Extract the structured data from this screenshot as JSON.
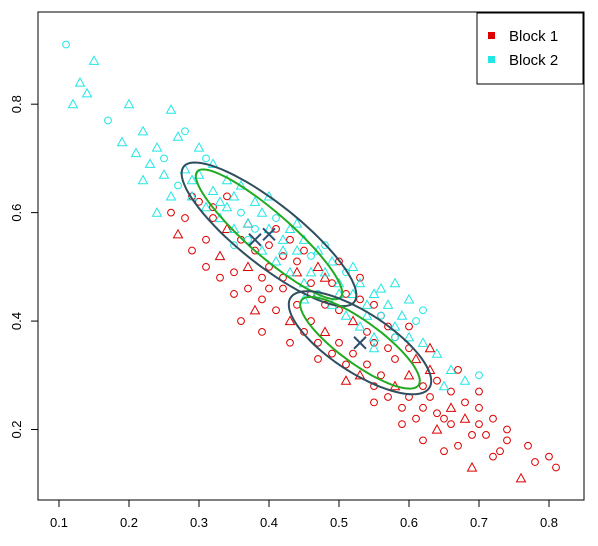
{
  "chart_data": {
    "type": "scatter",
    "title": "",
    "xlabel": "",
    "ylabel": "",
    "xlim": [
      0.07,
      0.85
    ],
    "ylim": [
      0.07,
      0.97
    ],
    "x_ticks": [
      "0.1",
      "0.2",
      "0.3",
      "0.4",
      "0.5",
      "0.6",
      "0.7",
      "0.8"
    ],
    "y_ticks": [
      "0.2",
      "0.4",
      "0.6",
      "0.8"
    ],
    "grid": false,
    "legend": {
      "position": "top-right",
      "entries": [
        "Block 1",
        "Block 2"
      ]
    },
    "series": [
      {
        "name": "Block 1",
        "color": "#dd0000",
        "markers": [
          "circle",
          "triangle"
        ],
        "points": [
          [
            0.52,
            0.4
          ],
          [
            0.48,
            0.43
          ],
          [
            0.55,
            0.36
          ],
          [
            0.58,
            0.33
          ],
          [
            0.62,
            0.28
          ],
          [
            0.66,
            0.24
          ],
          [
            0.7,
            0.21
          ],
          [
            0.74,
            0.18
          ],
          [
            0.78,
            0.14
          ],
          [
            0.81,
            0.13
          ],
          [
            0.76,
            0.11
          ],
          [
            0.72,
            0.15
          ],
          [
            0.69,
            0.19
          ],
          [
            0.65,
            0.22
          ],
          [
            0.63,
            0.26
          ],
          [
            0.6,
            0.3
          ],
          [
            0.57,
            0.35
          ],
          [
            0.54,
            0.38
          ],
          [
            0.5,
            0.42
          ],
          [
            0.46,
            0.45
          ],
          [
            0.44,
            0.49
          ],
          [
            0.42,
            0.52
          ],
          [
            0.4,
            0.5
          ],
          [
            0.38,
            0.53
          ],
          [
            0.36,
            0.55
          ],
          [
            0.34,
            0.57
          ],
          [
            0.32,
            0.59
          ],
          [
            0.3,
            0.62
          ],
          [
            0.28,
            0.59
          ],
          [
            0.31,
            0.55
          ],
          [
            0.33,
            0.52
          ],
          [
            0.35,
            0.49
          ],
          [
            0.37,
            0.46
          ],
          [
            0.39,
            0.44
          ],
          [
            0.41,
            0.42
          ],
          [
            0.43,
            0.4
          ],
          [
            0.45,
            0.38
          ],
          [
            0.47,
            0.36
          ],
          [
            0.49,
            0.34
          ],
          [
            0.51,
            0.32
          ],
          [
            0.53,
            0.3
          ],
          [
            0.55,
            0.28
          ],
          [
            0.57,
            0.26
          ],
          [
            0.59,
            0.24
          ],
          [
            0.61,
            0.22
          ],
          [
            0.64,
            0.2
          ],
          [
            0.67,
            0.17
          ],
          [
            0.71,
            0.19
          ],
          [
            0.68,
            0.25
          ],
          [
            0.64,
            0.29
          ],
          [
            0.61,
            0.33
          ],
          [
            0.58,
            0.37
          ],
          [
            0.56,
            0.41
          ],
          [
            0.53,
            0.44
          ],
          [
            0.49,
            0.47
          ],
          [
            0.47,
            0.5
          ],
          [
            0.45,
            0.53
          ],
          [
            0.43,
            0.55
          ],
          [
            0.41,
            0.57
          ],
          [
            0.39,
            0.48
          ],
          [
            0.37,
            0.5
          ],
          [
            0.35,
            0.45
          ],
          [
            0.33,
            0.48
          ],
          [
            0.31,
            0.5
          ],
          [
            0.29,
            0.53
          ],
          [
            0.27,
            0.56
          ],
          [
            0.26,
            0.6
          ],
          [
            0.29,
            0.63
          ],
          [
            0.32,
            0.61
          ],
          [
            0.34,
            0.63
          ],
          [
            0.37,
            0.58
          ],
          [
            0.4,
            0.54
          ],
          [
            0.42,
            0.46
          ],
          [
            0.44,
            0.43
          ],
          [
            0.46,
            0.4
          ],
          [
            0.48,
            0.38
          ],
          [
            0.5,
            0.36
          ],
          [
            0.52,
            0.34
          ],
          [
            0.54,
            0.32
          ],
          [
            0.56,
            0.3
          ],
          [
            0.58,
            0.28
          ],
          [
            0.6,
            0.26
          ],
          [
            0.62,
            0.24
          ],
          [
            0.64,
            0.23
          ],
          [
            0.66,
            0.21
          ],
          [
            0.68,
            0.22
          ],
          [
            0.7,
            0.24
          ],
          [
            0.72,
            0.22
          ],
          [
            0.74,
            0.2
          ],
          [
            0.66,
            0.27
          ],
          [
            0.63,
            0.31
          ],
          [
            0.6,
            0.35
          ],
          [
            0.57,
            0.39
          ],
          [
            0.55,
            0.43
          ],
          [
            0.51,
            0.45
          ],
          [
            0.48,
            0.48
          ],
          [
            0.46,
            0.47
          ],
          [
            0.44,
            0.51
          ],
          [
            0.42,
            0.48
          ],
          [
            0.4,
            0.46
          ],
          [
            0.38,
            0.42
          ],
          [
            0.36,
            0.4
          ],
          [
            0.39,
            0.38
          ],
          [
            0.43,
            0.36
          ],
          [
            0.47,
            0.33
          ],
          [
            0.51,
            0.29
          ],
          [
            0.55,
            0.25
          ],
          [
            0.59,
            0.21
          ],
          [
            0.62,
            0.18
          ],
          [
            0.65,
            0.16
          ],
          [
            0.69,
            0.13
          ],
          [
            0.73,
            0.16
          ],
          [
            0.77,
            0.17
          ],
          [
            0.8,
            0.15
          ],
          [
            0.6,
            0.39
          ],
          [
            0.63,
            0.35
          ],
          [
            0.67,
            0.31
          ],
          [
            0.7,
            0.27
          ],
          [
            0.53,
            0.48
          ],
          [
            0.5,
            0.51
          ]
        ]
      },
      {
        "name": "Block 2",
        "color": "#22e6e6",
        "markers": [
          "triangle",
          "circle"
        ],
        "points": [
          [
            0.11,
            0.91
          ],
          [
            0.15,
            0.88
          ],
          [
            0.13,
            0.84
          ],
          [
            0.12,
            0.8
          ],
          [
            0.14,
            0.82
          ],
          [
            0.17,
            0.77
          ],
          [
            0.2,
            0.8
          ],
          [
            0.22,
            0.75
          ],
          [
            0.24,
            0.72
          ],
          [
            0.26,
            0.79
          ],
          [
            0.25,
            0.7
          ],
          [
            0.27,
            0.74
          ],
          [
            0.28,
            0.68
          ],
          [
            0.3,
            0.72
          ],
          [
            0.29,
            0.66
          ],
          [
            0.31,
            0.7
          ],
          [
            0.32,
            0.64
          ],
          [
            0.34,
            0.66
          ],
          [
            0.33,
            0.62
          ],
          [
            0.35,
            0.63
          ],
          [
            0.36,
            0.6
          ],
          [
            0.38,
            0.62
          ],
          [
            0.37,
            0.58
          ],
          [
            0.39,
            0.6
          ],
          [
            0.4,
            0.57
          ],
          [
            0.41,
            0.59
          ],
          [
            0.42,
            0.55
          ],
          [
            0.43,
            0.57
          ],
          [
            0.44,
            0.53
          ],
          [
            0.45,
            0.55
          ],
          [
            0.46,
            0.52
          ],
          [
            0.47,
            0.53
          ],
          [
            0.48,
            0.49
          ],
          [
            0.49,
            0.51
          ],
          [
            0.5,
            0.47
          ],
          [
            0.51,
            0.49
          ],
          [
            0.52,
            0.45
          ],
          [
            0.53,
            0.47
          ],
          [
            0.54,
            0.43
          ],
          [
            0.55,
            0.45
          ],
          [
            0.56,
            0.41
          ],
          [
            0.57,
            0.43
          ],
          [
            0.58,
            0.39
          ],
          [
            0.59,
            0.41
          ],
          [
            0.6,
            0.37
          ],
          [
            0.61,
            0.4
          ],
          [
            0.62,
            0.36
          ],
          [
            0.64,
            0.34
          ],
          [
            0.66,
            0.31
          ],
          [
            0.68,
            0.29
          ],
          [
            0.7,
            0.3
          ],
          [
            0.19,
            0.73
          ],
          [
            0.21,
            0.71
          ],
          [
            0.23,
            0.69
          ],
          [
            0.25,
            0.67
          ],
          [
            0.27,
            0.65
          ],
          [
            0.29,
            0.63
          ],
          [
            0.31,
            0.61
          ],
          [
            0.33,
            0.59
          ],
          [
            0.35,
            0.57
          ],
          [
            0.37,
            0.55
          ],
          [
            0.39,
            0.53
          ],
          [
            0.41,
            0.51
          ],
          [
            0.43,
            0.49
          ],
          [
            0.45,
            0.47
          ],
          [
            0.47,
            0.45
          ],
          [
            0.49,
            0.43
          ],
          [
            0.51,
            0.41
          ],
          [
            0.53,
            0.39
          ],
          [
            0.55,
            0.37
          ],
          [
            0.28,
            0.75
          ],
          [
            0.3,
            0.67
          ],
          [
            0.32,
            0.69
          ],
          [
            0.34,
            0.61
          ],
          [
            0.36,
            0.65
          ],
          [
            0.38,
            0.57
          ],
          [
            0.4,
            0.63
          ],
          [
            0.42,
            0.53
          ],
          [
            0.44,
            0.58
          ],
          [
            0.46,
            0.49
          ],
          [
            0.48,
            0.54
          ],
          [
            0.5,
            0.45
          ],
          [
            0.52,
            0.5
          ],
          [
            0.54,
            0.41
          ],
          [
            0.56,
            0.46
          ],
          [
            0.58,
            0.37
          ],
          [
            0.6,
            0.44
          ],
          [
            0.24,
            0.6
          ],
          [
            0.22,
            0.66
          ],
          [
            0.26,
            0.63
          ],
          [
            0.35,
            0.54
          ],
          [
            0.45,
            0.44
          ],
          [
            0.55,
            0.35
          ],
          [
            0.65,
            0.28
          ],
          [
            0.58,
            0.47
          ],
          [
            0.62,
            0.42
          ]
        ]
      }
    ],
    "ellipses": [
      {
        "cx": 0.4,
        "cy": 0.56,
        "rx": 0.155,
        "ry": 0.035,
        "angle": -0.86,
        "color": "#22aa22"
      },
      {
        "cx": 0.4,
        "cy": 0.56,
        "rx": 0.175,
        "ry": 0.05,
        "angle": -0.82,
        "color": "#2f4f5f"
      },
      {
        "cx": 0.53,
        "cy": 0.36,
        "rx": 0.115,
        "ry": 0.035,
        "angle": -0.78,
        "color": "#22aa22"
      },
      {
        "cx": 0.53,
        "cy": 0.36,
        "rx": 0.13,
        "ry": 0.05,
        "angle": -0.74,
        "color": "#2f4f5f"
      }
    ],
    "centers": [
      {
        "x": 0.4,
        "y": 0.56,
        "color": "#2f4f6f"
      },
      {
        "x": 0.38,
        "y": 0.55,
        "color": "#2f4f6f"
      },
      {
        "x": 0.53,
        "y": 0.36,
        "color": "#2f4f6f"
      }
    ]
  }
}
